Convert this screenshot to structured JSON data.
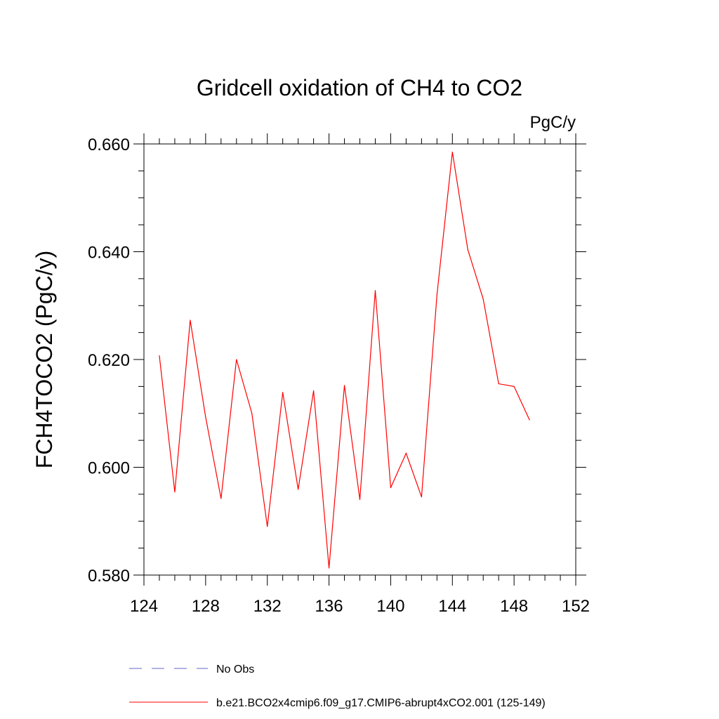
{
  "chart_data": {
    "type": "line",
    "title": "Gridcell oxidation of CH4 to CO2",
    "units_label": "PgC/y",
    "ylabel": "FCH4TOCO2  (PgC/y)",
    "xlabel": "",
    "xlim": [
      124,
      152
    ],
    "ylim": [
      0.58,
      0.66
    ],
    "x_ticks": [
      124,
      128,
      132,
      136,
      140,
      144,
      148,
      152
    ],
    "x_tick_labels": [
      "124",
      "128",
      "132",
      "136",
      "140",
      "144",
      "148",
      "152"
    ],
    "y_ticks": [
      0.58,
      0.6,
      0.62,
      0.64,
      0.66
    ],
    "y_tick_labels": [
      "0.580",
      "0.600",
      "0.620",
      "0.640",
      "0.660"
    ],
    "grid": false,
    "series": [
      {
        "name": "b.e21.BCO2x4cmip6.f09_g17.CMIP6-abrupt4xCO2.001 (125-149)",
        "color": "#ff0000",
        "dash": "solid",
        "x": [
          125,
          126,
          127,
          128,
          129,
          130,
          131,
          132,
          133,
          134,
          135,
          136,
          137,
          138,
          139,
          140,
          141,
          142,
          143,
          144,
          145,
          146,
          147,
          148,
          149
        ],
        "values": [
          0.6207,
          0.5954,
          0.6273,
          0.6093,
          0.5942,
          0.62,
          0.61,
          0.589,
          0.6139,
          0.5959,
          0.6142,
          0.5813,
          0.6152,
          0.594,
          0.6328,
          0.5962,
          0.6026,
          0.5945,
          0.632,
          0.6585,
          0.6404,
          0.6312,
          0.6155,
          0.615,
          0.6088
        ]
      }
    ],
    "legend": {
      "placement": "bottom-left",
      "entries": [
        {
          "label": "No Obs",
          "color": "#6666cc",
          "dash": "dashed"
        },
        {
          "label": "b.e21.BCO2x4cmip6.f09_g17.CMIP6-abrupt4xCO2.001 (125-149)",
          "color": "#ff0000",
          "dash": "solid"
        }
      ]
    }
  }
}
